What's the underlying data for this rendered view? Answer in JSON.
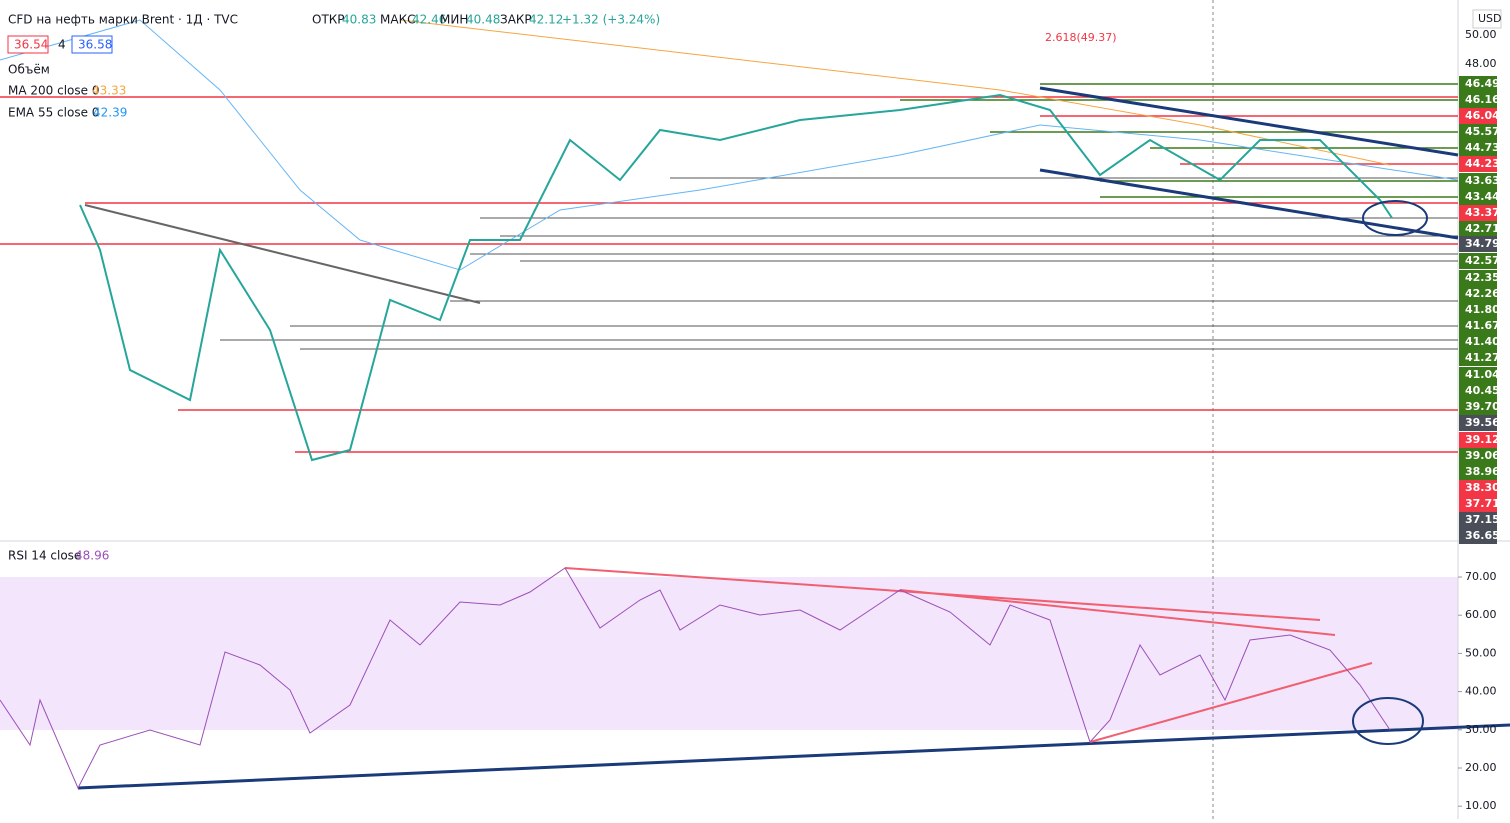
{
  "header": {
    "symbol": "CFD на нефть марки Brent · 1Д · TVC",
    "open_label": "ОТКР",
    "open": "40.83",
    "high_label": "МАКС",
    "high": "42.46",
    "low_label": "МИН",
    "low": "40.48",
    "close_label": "ЗАКР",
    "close": "42.12",
    "change": "+1.32 (+3.24%)"
  },
  "legend": {
    "bid": "36.54",
    "spread": "4",
    "ask": "36.58",
    "volume": "Объём",
    "ma_name": "MA 200 close 0",
    "ma_value": "43.33",
    "ema_name": "EMA 55 close 0",
    "ema_value": "42.39",
    "rsi_name": "RSI 14 close",
    "rsi_value": "48.96",
    "currency": "USD",
    "fib": "2.618(49.37)"
  },
  "price_scale": [
    {
      "label": "50.00",
      "bg": "none"
    },
    {
      "label": "48.00",
      "bg": "none"
    },
    {
      "label": "46.49",
      "bg": "#3b7a1a"
    },
    {
      "label": "46.16",
      "bg": "#3b7a1a"
    },
    {
      "label": "46.04",
      "bg": "#f23645"
    },
    {
      "label": "45.57",
      "bg": "#3b7a1a"
    },
    {
      "label": "44.73",
      "bg": "#3b7a1a"
    },
    {
      "label": "44.23",
      "bg": "#f23645"
    },
    {
      "label": "43.63",
      "bg": "#3b7a1a"
    },
    {
      "label": "43.44",
      "bg": "#3b7a1a"
    },
    {
      "label": "43.37",
      "bg": "#f23645"
    },
    {
      "label": "42.71",
      "bg": "#3b7a1a"
    },
    {
      "label": "34.79",
      "bg": "#4a4e59"
    },
    {
      "label": "42.57",
      "bg": "#3b7a1a"
    },
    {
      "label": "42.35",
      "bg": "#3b7a1a"
    },
    {
      "label": "42.26",
      "bg": "#3b7a1a"
    },
    {
      "label": "41.80",
      "bg": "#3b7a1a"
    },
    {
      "label": "41.67",
      "bg": "#3b7a1a"
    },
    {
      "label": "41.40",
      "bg": "#3b7a1a"
    },
    {
      "label": "41.27",
      "bg": "#3b7a1a"
    },
    {
      "label": "41.04",
      "bg": "#3b7a1a"
    },
    {
      "label": "40.45",
      "bg": "#3b7a1a"
    },
    {
      "label": "39.70",
      "bg": "#3b7a1a"
    },
    {
      "label": "39.56",
      "bg": "#4a4e59"
    },
    {
      "label": "39.12",
      "bg": "#f23645"
    },
    {
      "label": "39.06",
      "bg": "#3b7a1a"
    },
    {
      "label": "38.96",
      "bg": "#3b7a1a"
    },
    {
      "label": "38.30",
      "bg": "#f23645"
    },
    {
      "label": "37.71",
      "bg": "#f23645"
    },
    {
      "label": "37.15",
      "bg": "#4a4e59"
    },
    {
      "label": "36.65",
      "bg": "#4a4e59"
    }
  ],
  "rsi_scale": [
    "70.00",
    "60.00",
    "50.00",
    "40.00",
    "30.00",
    "20.00",
    "10.00"
  ]
}
